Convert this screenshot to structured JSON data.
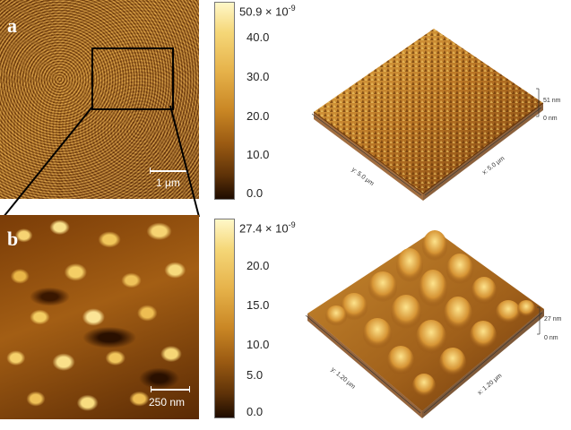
{
  "panels": [
    {
      "letter": "a",
      "scalebar_label": "1 μm",
      "colorbar": {
        "max_label_base": "50.9 × 10",
        "max_label_exp": "-9",
        "ticks": [
          "40.0",
          "30.0",
          "20.0",
          "10.0",
          "0.0"
        ]
      },
      "surface3d": {
        "z_max_label": "51 nm",
        "z_min_label": "0 nm",
        "y_axis_label": "y: 5.0 μm",
        "x_axis_label": "x: 5.0 μm"
      }
    },
    {
      "letter": "b",
      "scalebar_label": "250 nm",
      "colorbar": {
        "max_label_base": "27.4 × 10",
        "max_label_exp": "-9",
        "ticks": [
          "20.0",
          "15.0",
          "10.0",
          "5.0",
          "0.0"
        ]
      },
      "surface3d": {
        "z_max_label": "27 nm",
        "z_min_label": "0 nm",
        "y_axis_label": "y: 1.20 μm",
        "x_axis_label": "x: 1.20 μm"
      }
    }
  ],
  "colors": {
    "colormap_high": "#fff8c8",
    "colormap_mid": "#c98624",
    "colormap_low": "#1e0c00",
    "zoom_box": "#000000"
  }
}
